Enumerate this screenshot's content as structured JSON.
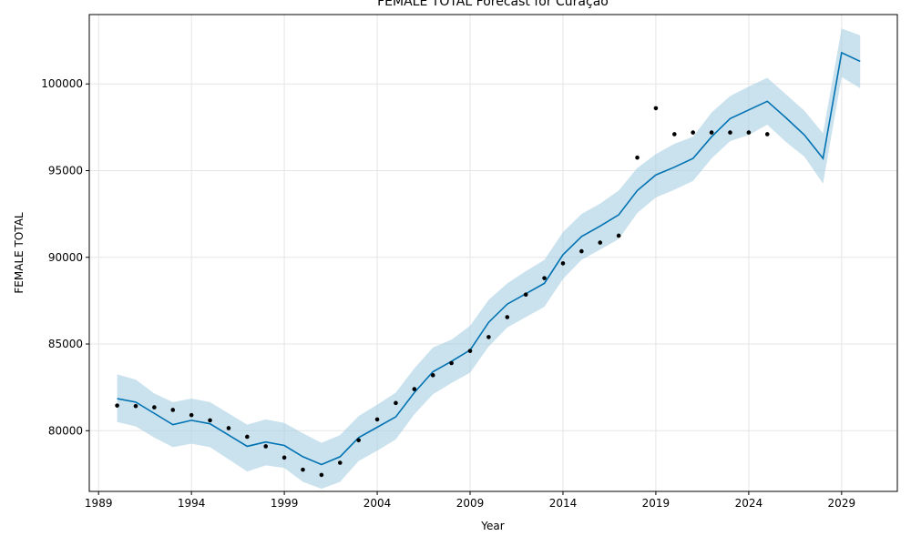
{
  "chart_data": {
    "type": "line",
    "title": "FEMALE TOTAL Forecast for Curaçao",
    "xlabel": "Year",
    "ylabel": "FEMALE TOTAL",
    "xlim": [
      1988.5,
      2032.0
    ],
    "ylim": [
      76500,
      104000
    ],
    "xticks": [
      1989,
      1994,
      1999,
      2004,
      2009,
      2014,
      2019,
      2024,
      2029
    ],
    "yticks": [
      80000,
      85000,
      90000,
      95000,
      100000
    ],
    "grid": true,
    "colors": {
      "forecast_line": "#0072B2",
      "interval_fill": "#A6CEE3",
      "actual_points": "#000000",
      "grid": "#e5e5e5"
    },
    "series": [
      {
        "kind": "actual",
        "x": [
          1990,
          1991,
          1992,
          1993,
          1994,
          1995,
          1996,
          1997,
          1998,
          1999,
          2000,
          2001,
          2002,
          2003,
          2004,
          2005,
          2006,
          2007,
          2008,
          2009,
          2010,
          2011,
          2012,
          2013,
          2014,
          2015,
          2016,
          2017,
          2018,
          2019,
          2020,
          2021,
          2022,
          2023,
          2024,
          2025
        ],
        "y": [
          81450,
          81420,
          81350,
          81200,
          80900,
          80600,
          80150,
          79650,
          79100,
          78450,
          77750,
          77450,
          78150,
          79450,
          80650,
          81600,
          82400,
          83200,
          83900,
          84600,
          85400,
          86550,
          87850,
          88800,
          89650,
          90350,
          90850,
          91250,
          95750,
          98600,
          97100,
          97200,
          97200,
          97200,
          97200,
          97100
        ]
      },
      {
        "kind": "forecast",
        "x": [
          1990,
          1991,
          1992,
          1993,
          1994,
          1995,
          1996,
          1997,
          1998,
          1999,
          2000,
          2001,
          2002,
          2003,
          2004,
          2005,
          2006,
          2007,
          2008,
          2009,
          2010,
          2011,
          2012,
          2013,
          2014,
          2015,
          2016,
          2017,
          2018,
          2019,
          2020,
          2021,
          2022,
          2023,
          2024,
          2025,
          2026,
          2027,
          2028,
          2029,
          2030
        ],
        "y": [
          81850,
          81650,
          81000,
          80350,
          80600,
          80400,
          79750,
          79100,
          79350,
          79150,
          78500,
          78050,
          78500,
          79600,
          80200,
          80800,
          82200,
          83400,
          84000,
          84650,
          86250,
          87300,
          87900,
          88500,
          90150,
          91200,
          91800,
          92450,
          93850,
          94750,
          95200,
          95700,
          96950,
          98000,
          98500,
          99000,
          98050,
          97050,
          95700,
          101800,
          101300
        ]
      },
      {
        "kind": "interval",
        "x": [
          1990,
          1991,
          1992,
          1993,
          1994,
          1995,
          1996,
          1997,
          1998,
          1999,
          2000,
          2001,
          2002,
          2003,
          2004,
          2005,
          2006,
          2007,
          2008,
          2009,
          2010,
          2011,
          2012,
          2013,
          2014,
          2015,
          2016,
          2017,
          2018,
          2019,
          2020,
          2021,
          2022,
          2023,
          2024,
          2025,
          2026,
          2027,
          2028,
          2029,
          2030
        ],
        "upper": [
          83250,
          82950,
          82150,
          81650,
          81850,
          81650,
          81000,
          80350,
          80650,
          80450,
          79850,
          79300,
          79750,
          80850,
          81500,
          82200,
          83600,
          84800,
          85250,
          86050,
          87550,
          88500,
          89200,
          89850,
          91450,
          92500,
          93100,
          93850,
          95150,
          95950,
          96550,
          96950,
          98350,
          99300,
          99850,
          100350,
          99400,
          98450,
          97150,
          103200,
          102800
        ],
        "lower": [
          80500,
          80250,
          79600,
          79050,
          79250,
          79050,
          78350,
          77650,
          78000,
          77850,
          77050,
          76650,
          77050,
          78250,
          78850,
          79500,
          80950,
          82100,
          82750,
          83350,
          84850,
          85950,
          86550,
          87150,
          88750,
          89850,
          90450,
          91050,
          92550,
          93450,
          93900,
          94400,
          95700,
          96700,
          97050,
          97650,
          96650,
          95800,
          94250,
          100400,
          99750
        ]
      }
    ]
  }
}
